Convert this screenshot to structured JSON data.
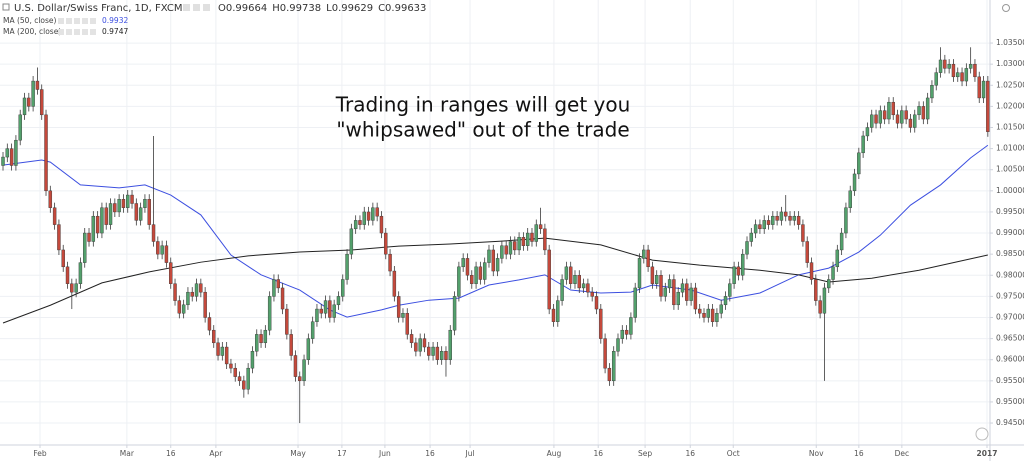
{
  "chart_data": {
    "type": "candlestick",
    "title": "U.S. Dollar/Swiss Franc, 1D, FXCM",
    "ohlc_readout": [
      {
        "label": "O",
        "value": "0.99664"
      },
      {
        "label": "H",
        "value": "0.99738"
      },
      {
        "label": "L",
        "value": "0.99629"
      },
      {
        "label": "C",
        "value": "0.99633"
      }
    ],
    "annotation": [
      "Trading in ranges will get you",
      "\"whipsawed\" out of the trade"
    ],
    "up_color": "#53a06c",
    "down_color": "#c4493c",
    "grid": true,
    "xlim": [
      -0.7,
      229.5
    ],
    "ylim": [
      0.9398,
      1.0452
    ],
    "yticks": [
      {
        "value": 0.945,
        "label": "0.94500"
      },
      {
        "value": 0.95,
        "label": "0.95000"
      },
      {
        "value": 0.955,
        "label": "0.95500"
      },
      {
        "value": 0.96,
        "label": "0.96000"
      },
      {
        "value": 0.965,
        "label": "0.96500"
      },
      {
        "value": 0.97,
        "label": "0.97000"
      },
      {
        "value": 0.975,
        "label": "0.97500"
      },
      {
        "value": 0.98,
        "label": "0.98000"
      },
      {
        "value": 0.985,
        "label": "0.98500"
      },
      {
        "value": 0.99,
        "label": "0.99000"
      },
      {
        "value": 0.995,
        "label": "0.99500"
      },
      {
        "value": 1.0,
        "label": "1.00000"
      },
      {
        "value": 1.005,
        "label": "1.00500"
      },
      {
        "value": 1.01,
        "label": "1.01000"
      },
      {
        "value": 1.015,
        "label": "1.01500"
      },
      {
        "value": 1.02,
        "label": "1.02000"
      },
      {
        "value": 1.025,
        "label": "1.02500"
      },
      {
        "value": 1.03,
        "label": "1.03000"
      },
      {
        "value": 1.035,
        "label": "1.03500"
      }
    ],
    "xticks": [
      {
        "value": 8.6,
        "label": "Feb"
      },
      {
        "value": 28.8,
        "label": "Mar"
      },
      {
        "value": 39,
        "label": "16"
      },
      {
        "value": 49.5,
        "label": "Apr"
      },
      {
        "value": 68.6,
        "label": "May"
      },
      {
        "value": 78.8,
        "label": "17"
      },
      {
        "value": 88.8,
        "label": "Jun"
      },
      {
        "value": 99.3,
        "label": "16"
      },
      {
        "value": 108.6,
        "label": "Jul"
      },
      {
        "value": 128.1,
        "label": "Aug"
      },
      {
        "value": 138.4,
        "label": "16"
      },
      {
        "value": 149.3,
        "label": "Sep"
      },
      {
        "value": 159.8,
        "label": "16"
      },
      {
        "value": 169.8,
        "label": "Oct"
      },
      {
        "value": 189.1,
        "label": "Nov"
      },
      {
        "value": 199,
        "label": "16"
      },
      {
        "value": 209,
        "label": "Dec"
      },
      {
        "value": 228.8,
        "label": "2017"
      }
    ],
    "open": [
      1.006,
      1.008,
      1.01,
      1.006,
      1.012,
      1.018,
      1.022,
      1.02,
      1.026,
      1.024,
      1.018,
      1.0,
      0.996,
      0.992,
      0.986,
      0.982,
      0.978,
      0.976,
      0.978,
      0.983,
      0.99,
      0.988,
      0.994,
      0.99,
      0.996,
      0.992,
      0.997,
      0.995,
      0.998,
      0.996,
      0.999,
      0.997,
      0.993,
      0.996,
      0.998,
      0.992,
      0.988,
      0.985,
      0.987,
      0.983,
      0.978,
      0.974,
      0.971,
      0.973,
      0.976,
      0.975,
      0.978,
      0.976,
      0.97,
      0.967,
      0.964,
      0.961,
      0.963,
      0.959,
      0.958,
      0.956,
      0.955,
      0.953,
      0.958,
      0.962,
      0.966,
      0.964,
      0.967,
      0.975,
      0.979,
      0.977,
      0.972,
      0.966,
      0.961,
      0.956,
      0.955,
      0.96,
      0.965,
      0.969,
      0.972,
      0.971,
      0.974,
      0.97,
      0.973,
      0.975,
      0.979,
      0.985,
      0.991,
      0.993,
      0.992,
      0.995,
      0.993,
      0.996,
      0.994,
      0.99,
      0.985,
      0.981,
      0.975,
      0.97,
      0.971,
      0.966,
      0.964,
      0.962,
      0.965,
      0.963,
      0.961,
      0.963,
      0.96,
      0.962,
      0.96,
      0.967,
      0.975,
      0.982,
      0.984,
      0.98,
      0.978,
      0.982,
      0.979,
      0.983,
      0.986,
      0.981,
      0.984,
      0.987,
      0.985,
      0.988,
      0.986,
      0.989,
      0.987,
      0.99,
      0.988,
      0.992,
      0.991,
      0.986,
      0.972,
      0.969,
      0.974,
      0.979,
      0.982,
      0.978,
      0.98,
      0.977,
      0.978,
      0.976,
      0.975,
      0.972,
      0.965,
      0.958,
      0.955,
      0.962,
      0.965,
      0.967,
      0.966,
      0.97,
      0.977,
      0.984,
      0.986,
      0.982,
      0.978,
      0.98,
      0.975,
      0.977,
      0.979,
      0.973,
      0.976,
      0.978,
      0.974,
      0.977,
      0.972,
      0.971,
      0.97,
      0.972,
      0.969,
      0.971,
      0.973,
      0.975,
      0.978,
      0.982,
      0.98,
      0.985,
      0.988,
      0.99,
      0.992,
      0.991,
      0.993,
      0.992,
      0.994,
      0.993,
      0.995,
      0.994,
      0.993,
      0.994,
      0.992,
      0.988,
      0.983,
      0.979,
      0.974,
      0.971,
      0.977,
      0.979,
      0.982,
      0.986,
      0.99,
      0.996,
      1.0,
      1.004,
      1.009,
      1.013,
      1.015,
      1.018,
      1.016,
      1.019,
      1.017,
      1.021,
      1.018,
      1.016,
      1.019,
      1.017,
      1.015,
      1.018,
      1.02,
      1.017,
      1.022,
      1.025,
      1.028,
      1.031,
      1.029,
      1.03,
      1.027,
      1.028,
      1.026,
      1.029,
      1.03,
      1.027,
      1.022,
      1.026
    ],
    "high": [
      1.0092,
      1.0112,
      1.0112,
      1.0132,
      1.0192,
      1.0232,
      1.0232,
      1.0272,
      1.0292,
      1.0252,
      1.0192,
      1.0012,
      0.9972,
      0.9932,
      0.9872,
      0.9832,
      0.9792,
      0.9792,
      0.9842,
      0.9912,
      0.9912,
      0.9952,
      0.9952,
      0.9972,
      0.9972,
      0.9982,
      0.9982,
      0.9992,
      0.9992,
      1.0002,
      1.0002,
      0.9982,
      0.9972,
      0.9992,
      0.9992,
      1.013,
      0.9892,
      0.9882,
      0.9882,
      0.9842,
      0.9792,
      0.9752,
      0.9742,
      0.9772,
      0.9772,
      0.9792,
      0.9792,
      0.9772,
      0.9712,
      0.9682,
      0.9652,
      0.9642,
      0.9642,
      0.9602,
      0.9592,
      0.9572,
      0.9562,
      0.9592,
      0.9632,
      0.9672,
      0.9672,
      0.9682,
      0.9762,
      0.9802,
      0.9802,
      0.9782,
      0.9732,
      0.9672,
      0.9622,
      0.9572,
      0.9612,
      0.9662,
      0.9702,
      0.9732,
      0.9732,
      0.9752,
      0.9752,
      0.9742,
      0.9762,
      0.9802,
      0.9862,
      0.9922,
      0.9942,
      0.9942,
      0.9962,
      0.9962,
      0.9972,
      0.9972,
      0.9952,
      0.9912,
      0.9862,
      0.9822,
      0.9762,
      0.9722,
      0.9722,
      0.9672,
      0.9652,
      0.9662,
      0.9662,
      0.9642,
      0.9642,
      0.9642,
      0.9632,
      0.9632,
      0.9682,
      0.9762,
      0.9832,
      0.9852,
      0.9852,
      0.9812,
      0.9832,
      0.9832,
      0.9842,
      0.9872,
      0.9872,
      0.9852,
      0.9882,
      0.9882,
      0.9892,
      0.9892,
      0.9902,
      0.9902,
      0.9912,
      0.9912,
      0.9932,
      0.996,
      0.9922,
      0.9872,
      0.9732,
      0.9752,
      0.9802,
      0.9832,
      0.9832,
      0.9812,
      0.9812,
      0.9792,
      0.9792,
      0.9772,
      0.9762,
      0.9732,
      0.9662,
      0.9592,
      0.9632,
      0.9662,
      0.9682,
      0.9682,
      0.9712,
      0.9782,
      0.9852,
      0.9872,
      0.9872,
      0.9832,
      0.9812,
      0.9812,
      0.9782,
      0.9802,
      0.9802,
      0.9772,
      0.9792,
      0.9792,
      0.9782,
      0.9782,
      0.9732,
      0.9722,
      0.9732,
      0.9732,
      0.9722,
      0.9742,
      0.9762,
      0.9792,
      0.9832,
      0.9832,
      0.9862,
      0.9892,
      0.9912,
      0.9932,
      0.9932,
      0.9942,
      0.9942,
      0.9952,
      0.9952,
      0.9962,
      0.999,
      0.9952,
      0.9952,
      0.9952,
      0.9932,
      0.9892,
      0.9842,
      0.9802,
      0.9752,
      0.9782,
      0.9802,
      0.9832,
      0.9872,
      0.9912,
      0.9972,
      1.0012,
      1.0052,
      1.0102,
      1.0142,
      1.0162,
      1.0192,
      1.0192,
      1.0202,
      1.0202,
      1.0222,
      1.0222,
      1.0192,
      1.0202,
      1.0202,
      1.0182,
      1.0192,
      1.0212,
      1.0212,
      1.0232,
      1.0262,
      1.0292,
      1.034,
      1.0322,
      1.0312,
      1.0312,
      1.0292,
      1.0292,
      1.0302,
      1.034,
      1.0312,
      1.0282,
      1.0272,
      1.0272
    ],
    "low": [
      1.0048,
      1.0068,
      1.0048,
      1.0048,
      1.0108,
      1.0168,
      1.0188,
      1.0188,
      1.0228,
      1.0168,
      0.9988,
      0.9948,
      0.9908,
      0.9848,
      0.9808,
      0.9768,
      0.972,
      0.9748,
      0.9768,
      0.9818,
      0.9868,
      0.9868,
      0.9888,
      0.9888,
      0.9908,
      0.9908,
      0.9938,
      0.9938,
      0.9948,
      0.9948,
      0.9958,
      0.9918,
      0.9918,
      0.9948,
      0.9908,
      0.9868,
      0.9838,
      0.9838,
      0.9818,
      0.9768,
      0.9728,
      0.9698,
      0.9698,
      0.9718,
      0.9738,
      0.9738,
      0.9748,
      0.9688,
      0.9658,
      0.9628,
      0.9598,
      0.9598,
      0.9578,
      0.9568,
      0.9548,
      0.9538,
      0.951,
      0.9518,
      0.9568,
      0.9608,
      0.9628,
      0.9628,
      0.9658,
      0.9738,
      0.9758,
      0.9708,
      0.9648,
      0.9598,
      0.9548,
      0.945,
      0.9538,
      0.9588,
      0.9638,
      0.9678,
      0.9698,
      0.9698,
      0.9688,
      0.9688,
      0.9718,
      0.9738,
      0.9778,
      0.9838,
      0.9898,
      0.9908,
      0.9908,
      0.9918,
      0.9918,
      0.9928,
      0.9888,
      0.9838,
      0.9798,
      0.9738,
      0.9688,
      0.9688,
      0.9648,
      0.9628,
      0.9608,
      0.9608,
      0.9618,
      0.9598,
      0.9598,
      0.9588,
      0.9588,
      0.956,
      0.9588,
      0.9658,
      0.9738,
      0.9808,
      0.9788,
      0.9768,
      0.9768,
      0.9778,
      0.9778,
      0.9818,
      0.9798,
      0.9798,
      0.9828,
      0.9838,
      0.9838,
      0.9848,
      0.9848,
      0.9858,
      0.9858,
      0.9868,
      0.9868,
      0.9898,
      0.9848,
      0.9708,
      0.9678,
      0.9678,
      0.9728,
      0.9778,
      0.9768,
      0.9768,
      0.9758,
      0.9758,
      0.9748,
      0.9738,
      0.9708,
      0.9638,
      0.9568,
      0.9538,
      0.9538,
      0.9608,
      0.9638,
      0.9648,
      0.9648,
      0.9688,
      0.9758,
      0.9828,
      0.9808,
      0.9768,
      0.9768,
      0.9738,
      0.9738,
      0.9758,
      0.9718,
      0.9718,
      0.9748,
      0.9728,
      0.9728,
      0.9708,
      0.9698,
      0.9688,
      0.9688,
      0.9678,
      0.9678,
      0.9698,
      0.9718,
      0.9738,
      0.9768,
      0.9788,
      0.9788,
      0.9838,
      0.9868,
      0.9888,
      0.9898,
      0.9898,
      0.9908,
      0.9908,
      0.9918,
      0.9918,
      0.9928,
      0.9918,
      0.9918,
      0.9908,
      0.9868,
      0.9818,
      0.9778,
      0.9728,
      0.9698,
      0.955,
      0.9758,
      0.9778,
      0.9808,
      0.9848,
      0.9888,
      0.9948,
      0.9988,
      1.0028,
      1.0078,
      1.0118,
      1.0138,
      1.0148,
      1.0148,
      1.0158,
      1.0158,
      1.0168,
      1.0148,
      1.0148,
      1.0158,
      1.0138,
      1.0138,
      1.0168,
      1.0158,
      1.0158,
      1.0208,
      1.0238,
      1.0268,
      1.0278,
      1.0278,
      1.0258,
      1.0258,
      1.0248,
      1.0248,
      1.0278,
      1.0258,
      1.0208,
      1.0208,
      1.0128
    ],
    "close": [
      1.008,
      1.01,
      1.006,
      1.012,
      1.018,
      1.022,
      1.02,
      1.026,
      1.024,
      1.018,
      1.0,
      0.996,
      0.992,
      0.986,
      0.982,
      0.978,
      0.976,
      0.978,
      0.983,
      0.99,
      0.988,
      0.994,
      0.99,
      0.996,
      0.992,
      0.997,
      0.995,
      0.998,
      0.996,
      0.999,
      0.997,
      0.993,
      0.996,
      0.998,
      0.992,
      0.988,
      0.985,
      0.987,
      0.983,
      0.978,
      0.974,
      0.971,
      0.973,
      0.976,
      0.975,
      0.978,
      0.976,
      0.97,
      0.967,
      0.964,
      0.961,
      0.963,
      0.959,
      0.958,
      0.956,
      0.955,
      0.953,
      0.958,
      0.962,
      0.966,
      0.964,
      0.967,
      0.975,
      0.979,
      0.977,
      0.972,
      0.966,
      0.961,
      0.956,
      0.955,
      0.96,
      0.965,
      0.969,
      0.972,
      0.971,
      0.974,
      0.97,
      0.973,
      0.975,
      0.979,
      0.985,
      0.991,
      0.993,
      0.992,
      0.995,
      0.993,
      0.996,
      0.994,
      0.99,
      0.985,
      0.981,
      0.975,
      0.97,
      0.971,
      0.966,
      0.964,
      0.962,
      0.965,
      0.963,
      0.961,
      0.963,
      0.96,
      0.962,
      0.96,
      0.967,
      0.975,
      0.982,
      0.984,
      0.98,
      0.978,
      0.982,
      0.979,
      0.983,
      0.986,
      0.981,
      0.984,
      0.987,
      0.985,
      0.988,
      0.986,
      0.989,
      0.987,
      0.99,
      0.988,
      0.992,
      0.991,
      0.986,
      0.972,
      0.969,
      0.974,
      0.979,
      0.982,
      0.978,
      0.98,
      0.977,
      0.978,
      0.976,
      0.975,
      0.972,
      0.965,
      0.958,
      0.955,
      0.962,
      0.965,
      0.967,
      0.966,
      0.97,
      0.977,
      0.984,
      0.986,
      0.982,
      0.978,
      0.98,
      0.975,
      0.977,
      0.979,
      0.973,
      0.976,
      0.978,
      0.974,
      0.977,
      0.972,
      0.971,
      0.97,
      0.972,
      0.969,
      0.971,
      0.973,
      0.975,
      0.978,
      0.982,
      0.98,
      0.985,
      0.988,
      0.99,
      0.992,
      0.991,
      0.993,
      0.992,
      0.994,
      0.993,
      0.995,
      0.994,
      0.993,
      0.994,
      0.992,
      0.988,
      0.983,
      0.979,
      0.974,
      0.971,
      0.977,
      0.979,
      0.982,
      0.986,
      0.99,
      0.996,
      1.0,
      1.004,
      1.009,
      1.013,
      1.015,
      1.018,
      1.016,
      1.019,
      1.017,
      1.021,
      1.018,
      1.016,
      1.019,
      1.017,
      1.015,
      1.018,
      1.02,
      1.017,
      1.022,
      1.025,
      1.028,
      1.031,
      1.029,
      1.03,
      1.027,
      1.028,
      1.026,
      1.029,
      1.03,
      1.027,
      1.022,
      1.026,
      1.014
    ],
    "lines": [
      {
        "name": "MA (50, close)",
        "value_label": "0.9932",
        "color": "#3c4fe0",
        "x": [
          0,
          9,
          11,
          18,
          27,
          33,
          39,
          46,
          53,
          60,
          69,
          76,
          80,
          88,
          92,
          99,
          106,
          113,
          120,
          126,
          132,
          139,
          146,
          151,
          160,
          167,
          176,
          185,
          192,
          199,
          204,
          211,
          218,
          225,
          229
        ],
        "values": [
          1.0061,
          1.0073,
          1.0068,
          1.0014,
          1.0007,
          1.0014,
          0.999,
          0.9943,
          0.9848,
          0.9801,
          0.9765,
          0.9718,
          0.9701,
          0.9718,
          0.9729,
          0.9741,
          0.9746,
          0.9777,
          0.9789,
          0.9801,
          0.9765,
          0.9758,
          0.976,
          0.9777,
          0.9765,
          0.9741,
          0.9758,
          0.9801,
          0.9817,
          0.9855,
          0.9895,
          0.9966,
          1.0014,
          1.0078,
          1.0108
        ]
      },
      {
        "name": "MA (200, close)",
        "value_label": "0.9747",
        "color": "#222222",
        "x": [
          0,
          11,
          23,
          34,
          46,
          57,
          69,
          81,
          92,
          104,
          116,
          126,
          139,
          151,
          162,
          176,
          185,
          192,
          202,
          213,
          229
        ],
        "values": [
          0.9687,
          0.9729,
          0.9782,
          0.9808,
          0.9831,
          0.9846,
          0.9855,
          0.986,
          0.9869,
          0.9874,
          0.9881,
          0.9888,
          0.9872,
          0.9836,
          0.9824,
          0.9812,
          0.9801,
          0.9784,
          0.9793,
          0.9812,
          0.9848
        ]
      }
    ]
  }
}
